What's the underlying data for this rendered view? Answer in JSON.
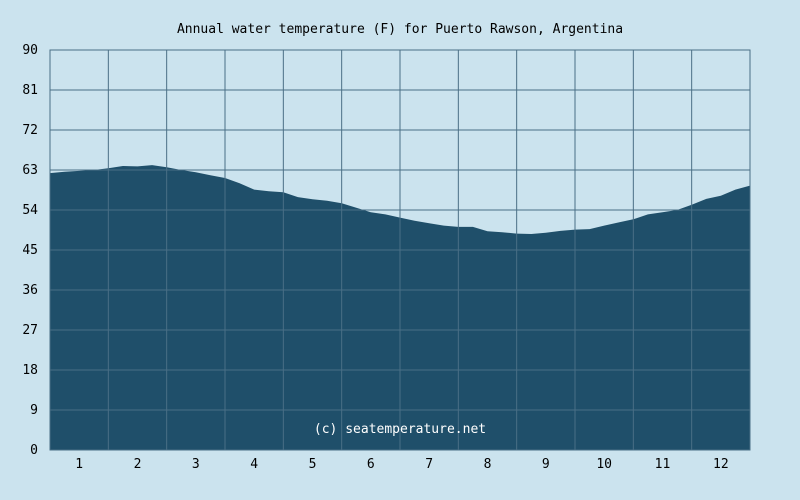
{
  "chart_data": {
    "type": "area",
    "title": "Annual water temperature (F) for Puerto Rawson, Argentina",
    "xlabel": "",
    "ylabel": "",
    "x_ticks": [
      "1",
      "2",
      "3",
      "4",
      "5",
      "6",
      "7",
      "8",
      "9",
      "10",
      "11",
      "12"
    ],
    "y_ticks": [
      "0",
      "9",
      "18",
      "27",
      "36",
      "45",
      "54",
      "63",
      "72",
      "81",
      "90"
    ],
    "xlim": [
      0.5,
      12.5
    ],
    "ylim": [
      0,
      90
    ],
    "grid": true,
    "annotation": "(c) seatemperature.net",
    "series": [
      {
        "x": [
          0.5,
          0.75,
          1.0,
          1.25,
          1.5,
          1.75,
          2.0,
          2.25,
          2.5,
          2.75,
          3.0,
          3.25,
          3.5,
          3.75,
          4.0,
          4.25,
          4.5,
          4.75,
          5.0,
          5.25,
          5.5,
          5.75,
          6.0,
          6.25,
          6.5,
          6.75,
          7.0,
          7.25,
          7.5,
          7.75,
          8.0,
          8.25,
          8.5,
          8.75,
          9.0,
          9.25,
          9.5,
          9.75,
          10.0,
          10.25,
          10.5,
          10.75,
          11.0,
          11.25,
          11.5,
          11.75,
          12.0,
          12.25,
          12.5
        ],
        "values": [
          62.3,
          62.6,
          62.8,
          63.0,
          63.4,
          63.9,
          63.8,
          64.1,
          63.6,
          63.0,
          62.5,
          61.8,
          61.2,
          60.0,
          58.6,
          58.2,
          58.0,
          56.9,
          56.4,
          56.1,
          55.5,
          54.5,
          53.5,
          53.0,
          52.3,
          51.6,
          51.0,
          50.5,
          50.2,
          50.2,
          49.2,
          49.0,
          48.7,
          48.6,
          48.9,
          49.3,
          49.6,
          49.7,
          50.5,
          51.2,
          51.9,
          53.0,
          53.5,
          54.0,
          55.2,
          56.5,
          57.2,
          58.6,
          59.5
        ]
      }
    ],
    "colors": {
      "background": "#cbe3ee",
      "area_fill": "#1f4f6a",
      "grid": "#4a6f86"
    }
  }
}
